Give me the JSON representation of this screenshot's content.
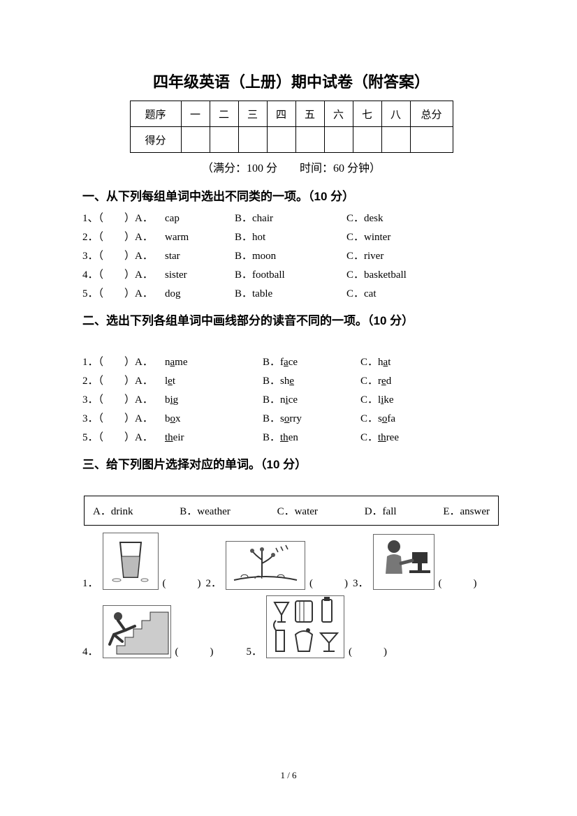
{
  "title": "四年级英语（上册）期中试卷（附答案）",
  "scoreTable": {
    "row1": [
      "题序",
      "一",
      "二",
      "三",
      "四",
      "五",
      "六",
      "七",
      "八",
      "总分"
    ],
    "row2Label": "得分"
  },
  "meta": "（满分：100 分　　时间：60 分钟）",
  "section1": {
    "head": "一、从下列每组单词中选出不同类的一项。（10 分）",
    "items": [
      {
        "n": "1、（　　）A．",
        "a": "cap",
        "bl": "B．",
        "b": "chair",
        "cl": "C．",
        "c": "desk"
      },
      {
        "n": "2．（　　）A．",
        "a": "warm",
        "bl": "B．",
        "b": "hot",
        "cl": "C．",
        "c": "winter"
      },
      {
        "n": "3．（　　）A．",
        "a": "star",
        "bl": "B．",
        "b": "moon",
        "cl": "C．",
        "c": "river"
      },
      {
        "n": "4．（　　）A．",
        "a": "sister",
        "bl": "B．",
        "b": "football",
        "cl": "C．",
        "c": "basketball"
      },
      {
        "n": "5．（　　）A．",
        "a": "dog",
        "bl": "B．",
        "b": "table",
        "cl": "C．",
        "c": "cat"
      }
    ]
  },
  "section2": {
    "head": "二、选出下列各组单词中画线部分的读音不同的一项。（10 分）",
    "items": [
      {
        "n": "1．（　　）A．",
        "a1": "n",
        "au": "a",
        "a2": "me",
        "bl": "B．",
        "b1": "f",
        "bu": "a",
        "b2": "ce",
        "cl": "C．",
        "c1": "h",
        "cu": "a",
        "c2": "t"
      },
      {
        "n": "2．（　　）A．",
        "a1": "l",
        "au": "e",
        "a2": "t",
        "bl": "B．",
        "b1": "sh",
        "bu": "e",
        "b2": "",
        "cl": "C．",
        "c1": "r",
        "cu": "e",
        "c2": "d"
      },
      {
        "n": "3．（　　）A．",
        "a1": "b",
        "au": "i",
        "a2": "g",
        "bl": "B．",
        "b1": "n",
        "bu": "i",
        "b2": "ce",
        "cl": "C．",
        "c1": "l",
        "cu": "i",
        "c2": "ke"
      },
      {
        "n": "3．（　　）A．",
        "a1": "b",
        "au": "o",
        "a2": "x",
        "bl": "B．",
        "b1": "s",
        "bu": "o",
        "b2": "rry",
        "cl": "C．",
        "c1": "s",
        "cu": "o",
        "c2": "fa"
      },
      {
        "n": "5．（　　）A．",
        "a1": "",
        "au": "th",
        "a2": "eir",
        "bl": "B．",
        "b1": "",
        "bu": "th",
        "b2": "en",
        "cl": "C．",
        "c1": "",
        "cu": "th",
        "c2": "ree"
      }
    ]
  },
  "section3": {
    "head": "三、给下列图片选择对应的单词。（10 分）",
    "box": [
      "A．drink",
      "B．weather",
      "C．water",
      "D．fall",
      "E．answer"
    ],
    "row1": [
      {
        "n": "1．",
        "p": "(　　　)"
      },
      {
        "n": "2．",
        "p": "(　　　)"
      },
      {
        "n": "3．",
        "p": "(　　　)"
      }
    ],
    "row2": [
      {
        "n": "4．",
        "p": "(　　　)"
      },
      {
        "n": "5．",
        "p": "(　　　)"
      }
    ]
  },
  "pageNum": "1 / 6"
}
